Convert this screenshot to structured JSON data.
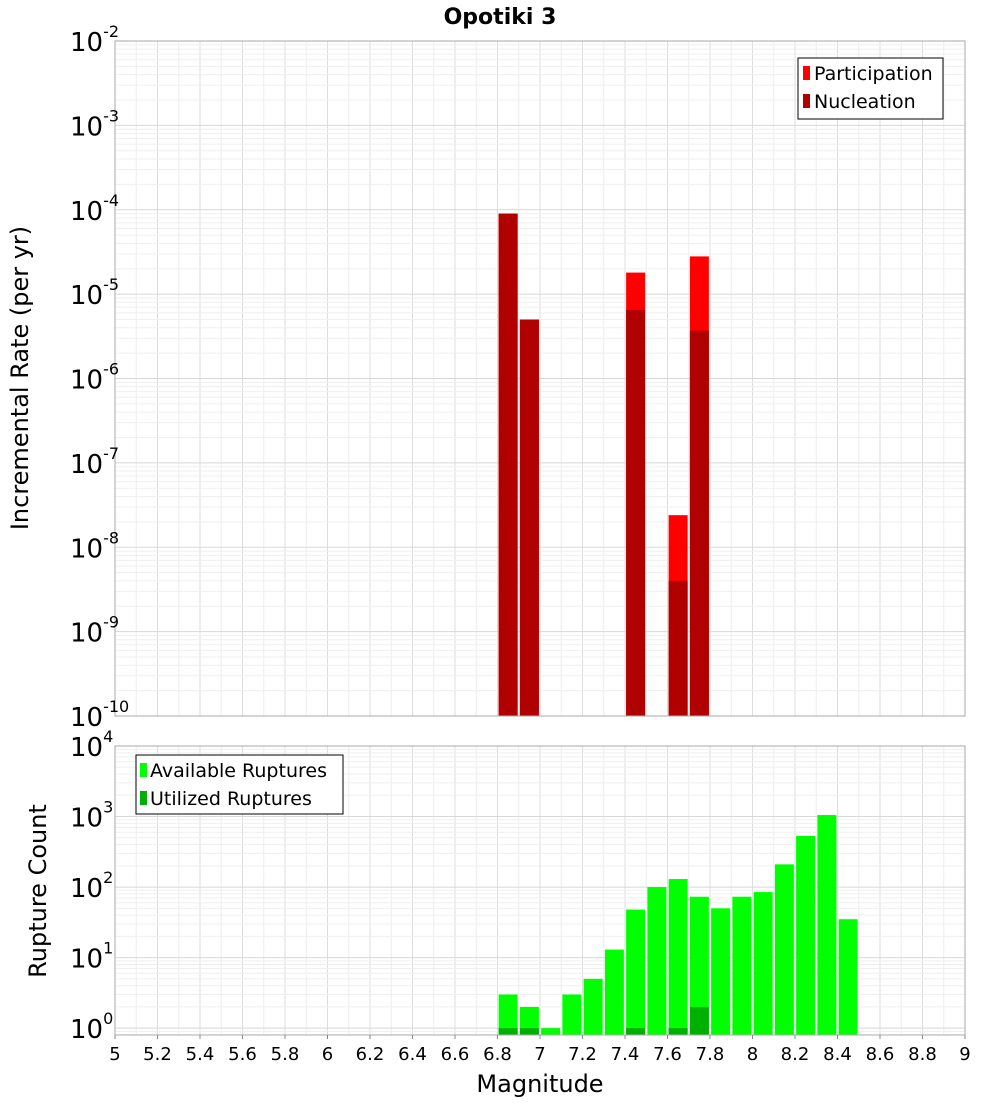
{
  "chart_data": [
    {
      "type": "bar",
      "title": "Opotiki 3",
      "xlabel": "",
      "ylabel": "Incremental Rate (per yr)",
      "yscale": "log",
      "ylim": [
        1e-10,
        0.01
      ],
      "xlim": [
        5,
        9
      ],
      "grid": true,
      "legend_placement": "top-right",
      "series": [
        {
          "name": "Participation",
          "color": "#ff0000",
          "x": [
            6.85,
            6.95,
            7.45,
            7.65,
            7.75
          ],
          "values": [
            9e-05,
            5e-06,
            1.8e-05,
            2.4e-08,
            2.8e-05
          ]
        },
        {
          "name": "Nucleation",
          "color": "#b00000",
          "x": [
            6.85,
            6.95,
            7.45,
            7.65,
            7.75
          ],
          "values": [
            9e-05,
            5e-06,
            6.5e-06,
            4e-09,
            3.7e-06
          ]
        }
      ]
    },
    {
      "type": "bar",
      "title": "",
      "xlabel": "Magnitude",
      "ylabel": "Rupture Count",
      "yscale": "log",
      "ylim": [
        0.8,
        10000
      ],
      "xlim": [
        5,
        9
      ],
      "grid": true,
      "legend_placement": "top-left",
      "x_ticks": [
        "5",
        "5.2",
        "5.4",
        "5.6",
        "5.8",
        "6",
        "6.2",
        "6.4",
        "6.6",
        "6.8",
        "7",
        "7.2",
        "7.4",
        "7.6",
        "7.8",
        "8",
        "8.2",
        "8.4",
        "8.6",
        "8.8",
        "9"
      ],
      "series": [
        {
          "name": "Available Ruptures",
          "color": "#00ff00",
          "x": [
            6.85,
            6.95,
            7.05,
            7.15,
            7.25,
            7.35,
            7.45,
            7.55,
            7.65,
            7.75,
            7.85,
            7.95,
            8.05,
            8.15,
            8.25,
            8.35,
            8.45
          ],
          "values": [
            3,
            2,
            1,
            3,
            5,
            13,
            48,
            100,
            130,
            73,
            50,
            73,
            85,
            210,
            530,
            1050,
            35
          ]
        },
        {
          "name": "Utilized Ruptures",
          "color": "#00b000",
          "x": [
            6.85,
            6.95,
            7.45,
            7.65,
            7.75
          ],
          "values": [
            1,
            1,
            1,
            1,
            2
          ]
        }
      ]
    }
  ]
}
